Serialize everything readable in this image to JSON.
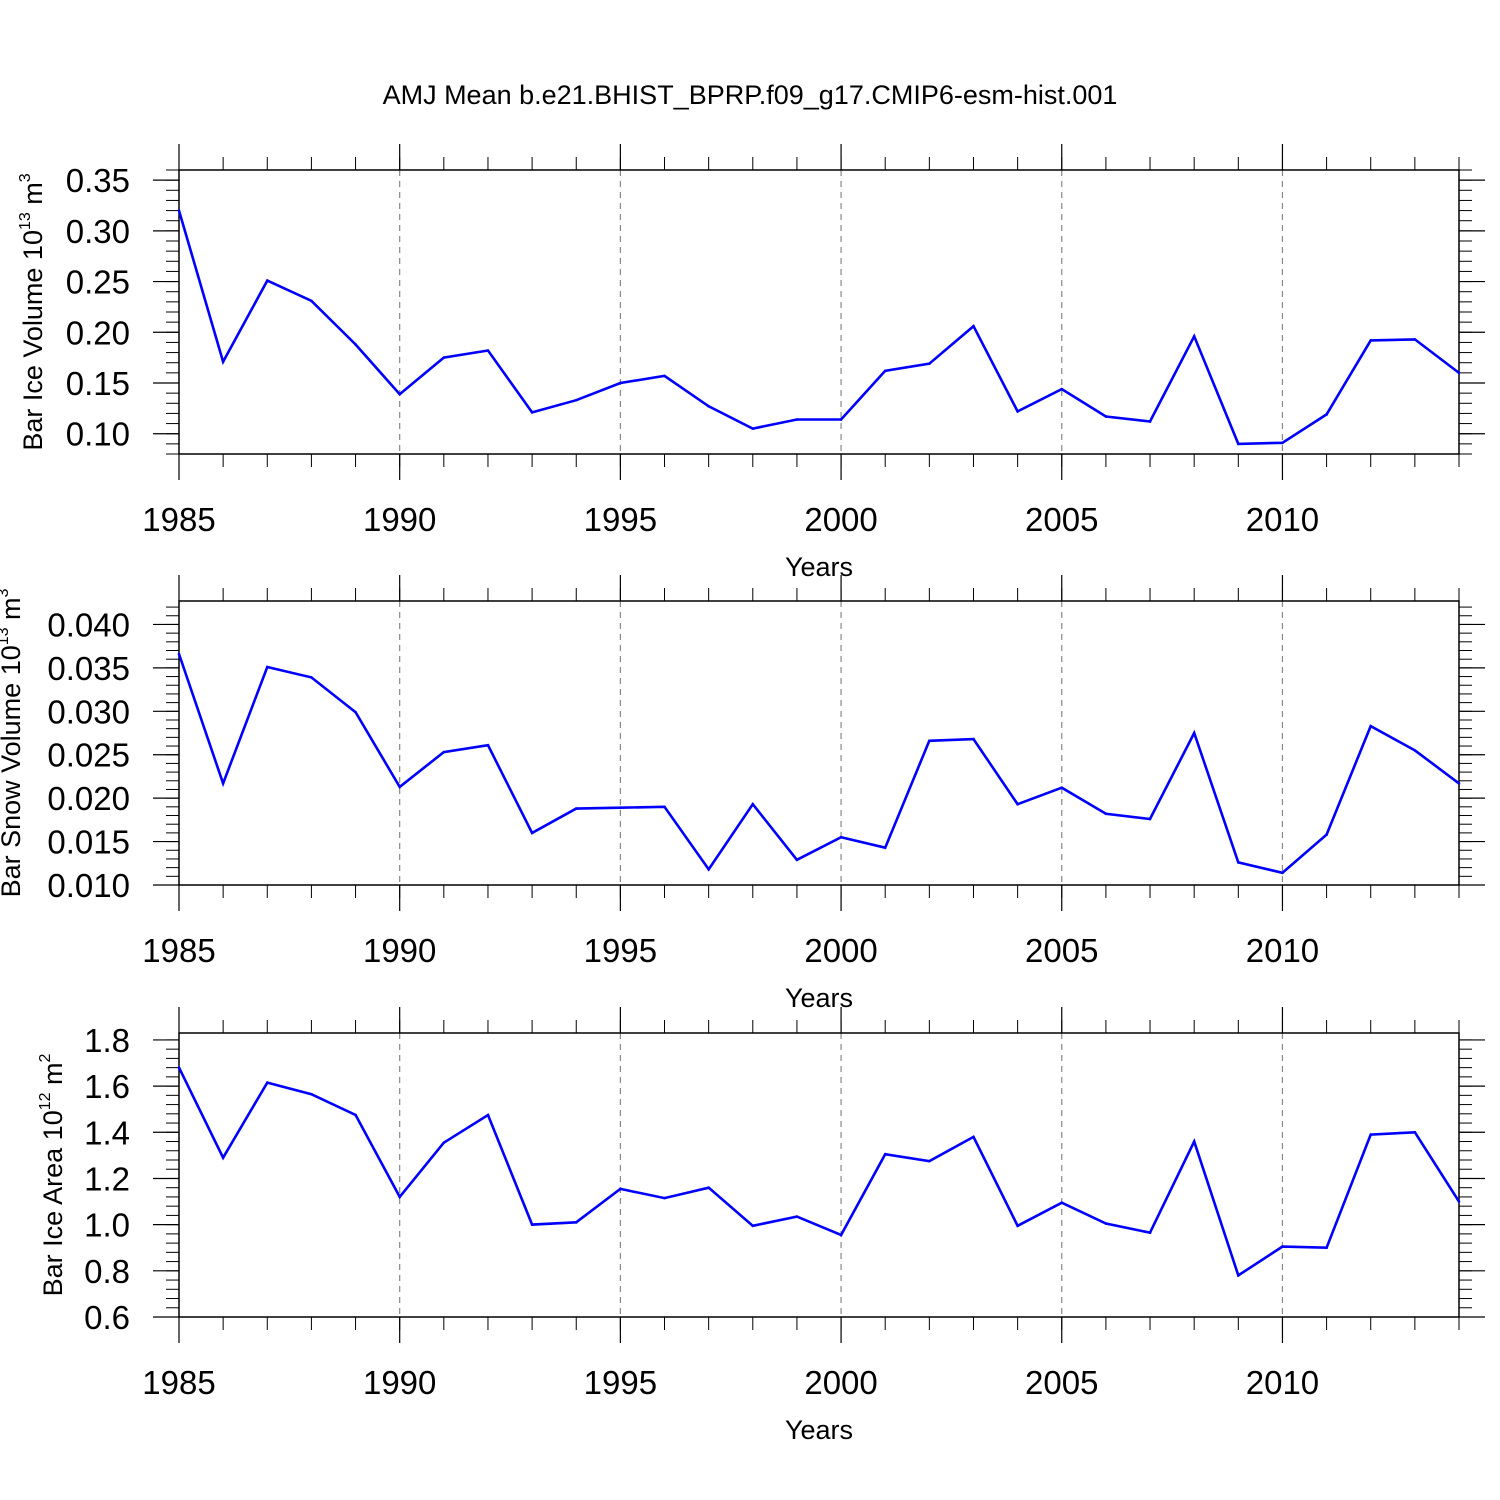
{
  "title": "AMJ Mean b.e21.BHIST_BPRP.f09_g17.CMIP6-esm-hist.001",
  "colors": {
    "line": "#0000ff",
    "axis": "#000000",
    "grid": "#888888"
  },
  "chart_data": [
    {
      "type": "line",
      "xlabel": "Years",
      "ylabel": {
        "text": "Bar Ice Volume 10",
        "sup": "13",
        "unit": " m",
        "unit_sup": "3"
      },
      "xlim": [
        1985,
        2014
      ],
      "ylim": [
        0.08,
        0.36
      ],
      "xticks": [
        1985,
        1990,
        1995,
        2000,
        2005,
        2010
      ],
      "xtick_labels": [
        "1985",
        "1990",
        "1995",
        "2000",
        "2005",
        "2010"
      ],
      "yticks": [
        0.1,
        0.15,
        0.2,
        0.25,
        0.3,
        0.35
      ],
      "ytick_labels": [
        "0.10",
        "0.15",
        "0.20",
        "0.25",
        "0.30",
        "0.35"
      ],
      "grid": "vertical dashed at major x ticks",
      "x": [
        1985,
        1986,
        1987,
        1988,
        1989,
        1990,
        1991,
        1992,
        1993,
        1994,
        1995,
        1996,
        1997,
        1998,
        1999,
        2000,
        2001,
        2002,
        2003,
        2004,
        2005,
        2006,
        2007,
        2008,
        2009,
        2010,
        2011,
        2012,
        2013,
        2014
      ],
      "values": [
        0.32,
        0.171,
        0.251,
        0.231,
        0.188,
        0.139,
        0.175,
        0.182,
        0.121,
        0.133,
        0.15,
        0.157,
        0.127,
        0.105,
        0.114,
        0.114,
        0.162,
        0.169,
        0.206,
        0.122,
        0.144,
        0.117,
        0.112,
        0.196,
        0.09,
        0.091,
        0.119,
        0.192,
        0.193,
        0.16
      ]
    },
    {
      "type": "line",
      "xlabel": "Years",
      "ylabel": {
        "text": "Bar Snow Volume 10",
        "sup": "13",
        "unit": " m",
        "unit_sup": "3"
      },
      "xlim": [
        1985,
        2014
      ],
      "ylim": [
        0.01,
        0.0427
      ],
      "xticks": [
        1985,
        1990,
        1995,
        2000,
        2005,
        2010
      ],
      "xtick_labels": [
        "1985",
        "1990",
        "1995",
        "2000",
        "2005",
        "2010"
      ],
      "yticks": [
        0.01,
        0.015,
        0.02,
        0.025,
        0.03,
        0.035,
        0.04
      ],
      "ytick_labels": [
        "0.010",
        "0.015",
        "0.020",
        "0.025",
        "0.030",
        "0.035",
        "0.040"
      ],
      "grid": "vertical dashed at major x ticks",
      "x": [
        1985,
        1986,
        1987,
        1988,
        1989,
        1990,
        1991,
        1992,
        1993,
        1994,
        1995,
        1996,
        1997,
        1998,
        1999,
        2000,
        2001,
        2002,
        2003,
        2004,
        2005,
        2006,
        2007,
        2008,
        2009,
        2010,
        2011,
        2012,
        2013,
        2014
      ],
      "values": [
        0.0366,
        0.0217,
        0.0351,
        0.0339,
        0.0299,
        0.0213,
        0.0253,
        0.0261,
        0.016,
        0.0188,
        0.0189,
        0.019,
        0.0118,
        0.0193,
        0.0129,
        0.0155,
        0.0143,
        0.0266,
        0.0268,
        0.0193,
        0.0212,
        0.0182,
        0.0176,
        0.0275,
        0.0126,
        0.0114,
        0.0158,
        0.0283,
        0.0255,
        0.0217
      ]
    },
    {
      "type": "line",
      "xlabel": "Years",
      "ylabel": {
        "text": "Bar Ice Area 10",
        "sup": "12",
        "unit": " m",
        "unit_sup": "2"
      },
      "xlim": [
        1985,
        2014
      ],
      "ylim": [
        0.6,
        1.83
      ],
      "xticks": [
        1985,
        1990,
        1995,
        2000,
        2005,
        2010
      ],
      "xtick_labels": [
        "1985",
        "1990",
        "1995",
        "2000",
        "2005",
        "2010"
      ],
      "yticks": [
        0.6,
        0.8,
        1.0,
        1.2,
        1.4,
        1.6,
        1.8
      ],
      "ytick_labels": [
        "0.6",
        "0.8",
        "1.0",
        "1.2",
        "1.4",
        "1.6",
        "1.8"
      ],
      "grid": "vertical dashed at major x ticks",
      "x": [
        1985,
        1986,
        1987,
        1988,
        1989,
        1990,
        1991,
        1992,
        1993,
        1994,
        1995,
        1996,
        1997,
        1998,
        1999,
        2000,
        2001,
        2002,
        2003,
        2004,
        2005,
        2006,
        2007,
        2008,
        2009,
        2010,
        2011,
        2012,
        2013,
        2014
      ],
      "values": [
        1.68,
        1.29,
        1.615,
        1.565,
        1.475,
        1.12,
        1.355,
        1.475,
        1.0,
        1.01,
        1.155,
        1.115,
        1.16,
        0.995,
        1.035,
        0.955,
        1.305,
        1.275,
        1.38,
        0.995,
        1.095,
        1.005,
        0.965,
        1.36,
        0.78,
        0.905,
        0.9,
        1.39,
        1.4,
        1.1
      ]
    }
  ]
}
